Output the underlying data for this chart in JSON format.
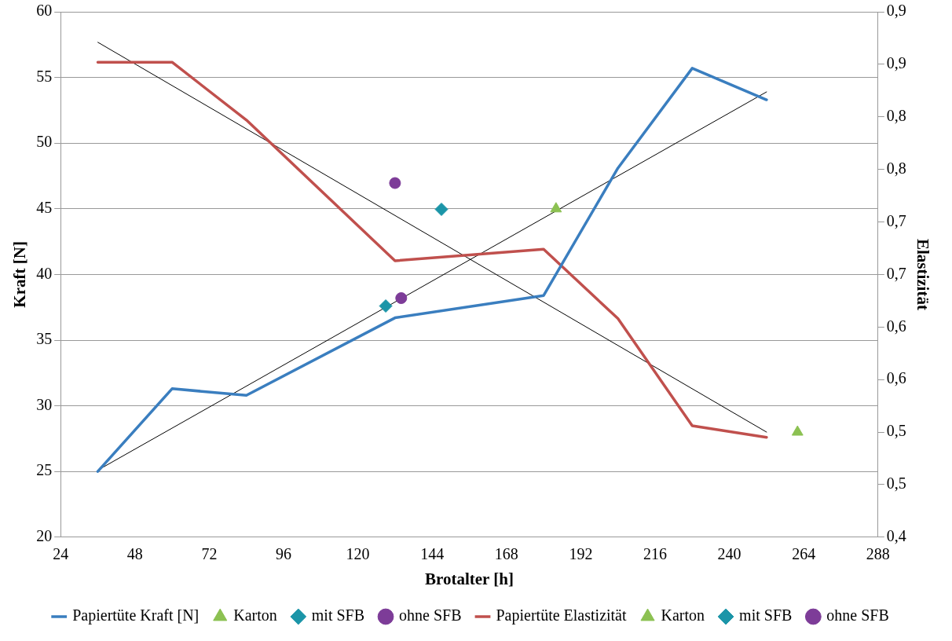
{
  "chart_data": {
    "type": "line",
    "xlabel": "Brotalter [h]",
    "ylabel": "Kraft [N]",
    "y2label": "Elastizität",
    "xlim": [
      24,
      288
    ],
    "xticks": [
      24,
      48,
      72,
      96,
      120,
      144,
      168,
      192,
      216,
      240,
      264,
      288
    ],
    "ylim": [
      20,
      60
    ],
    "yticks": [
      20,
      25,
      30,
      35,
      40,
      45,
      50,
      55,
      60
    ],
    "y2lim": [
      0.4,
      0.9
    ],
    "y2ticks": [
      {
        "value": 0.4,
        "label": "0,4"
      },
      {
        "value": 0.45,
        "label": "0,5"
      },
      {
        "value": 0.5,
        "label": "0,5"
      },
      {
        "value": 0.55,
        "label": "0,6"
      },
      {
        "value": 0.6,
        "label": "0,6"
      },
      {
        "value": 0.65,
        "label": "0,7"
      },
      {
        "value": 0.7,
        "label": "0,7"
      },
      {
        "value": 0.75,
        "label": "0,8"
      },
      {
        "value": 0.8,
        "label": "0,8"
      },
      {
        "value": 0.85,
        "label": "0,9"
      },
      {
        "value": 0.9,
        "label": "0,9"
      }
    ],
    "grid": "y",
    "legend": "bottom",
    "series": [
      {
        "name": "Papiertüte Kraft [N]",
        "type": "line",
        "marker": "none",
        "color": "#3a7ebf",
        "x": [
          36,
          60,
          84,
          132,
          180,
          204,
          228,
          252
        ],
        "values": [
          25,
          31.3,
          30.8,
          36.7,
          38.4,
          48.1,
          55.7,
          53.3
        ]
      },
      {
        "name": "Karton",
        "type": "scatter",
        "marker": "triangle",
        "color": "#8cc152",
        "x": [
          184
        ],
        "values": [
          45
        ]
      },
      {
        "name": "mit SFB",
        "type": "scatter",
        "marker": "diamond",
        "color": "#1b95a8",
        "x": [
          129
        ],
        "values": [
          37.6
        ]
      },
      {
        "name": "ohne SFB",
        "type": "scatter",
        "marker": "circle",
        "color": "#7d3c98",
        "x": [
          134
        ],
        "values": [
          38.2
        ]
      },
      {
        "name": "Papiertüte Elastizität",
        "type": "line",
        "marker": "none",
        "axis": "y2",
        "color": "#c0504d",
        "x": [
          36,
          60,
          84,
          132,
          180,
          204,
          228,
          252
        ],
        "values": [
          0.852,
          0.852,
          0.797,
          0.663,
          0.674,
          0.608,
          0.506,
          0.495
        ]
      },
      {
        "name": "Karton",
        "type": "scatter",
        "marker": "triangle",
        "axis": "y2",
        "color": "#8cc152",
        "x": [
          262
        ],
        "values": [
          0.5
        ]
      },
      {
        "name": "mit SFB",
        "type": "scatter",
        "marker": "diamond",
        "axis": "y2",
        "color": "#1b95a8",
        "x": [
          147
        ],
        "values": [
          0.712
        ]
      },
      {
        "name": "ohne SFB",
        "type": "scatter",
        "marker": "circle",
        "axis": "y2",
        "color": "#7d3c98",
        "x": [
          132
        ],
        "values": [
          0.737
        ]
      },
      {
        "type": "line",
        "marker": "none",
        "color": "#000000",
        "x": [
          36,
          252
        ],
        "values": [
          25.1,
          53.9
        ]
      },
      {
        "type": "line",
        "marker": "none",
        "axis": "y2",
        "color": "#000000",
        "x": [
          36,
          252
        ],
        "values": [
          0.871,
          0.5
        ]
      }
    ]
  }
}
